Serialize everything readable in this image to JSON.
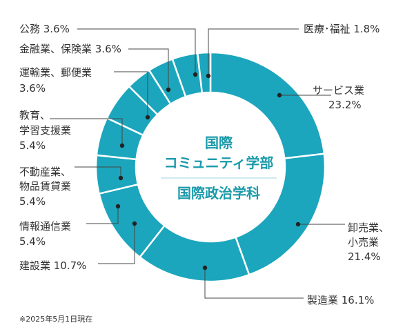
{
  "chart_data": {
    "type": "pie",
    "donut": true,
    "center_label": {
      "line1": "国際",
      "line2": "コミュニティ学部",
      "line3": "国際政治学科"
    },
    "color": "#1ba6bd",
    "slices": [
      {
        "label": "サービス業",
        "value": 23.2,
        "display": "23.2%"
      },
      {
        "label": "卸売業、小売業",
        "value": 21.4,
        "display": "21.4%"
      },
      {
        "label": "製造業",
        "value": 16.1,
        "display": "16.1%"
      },
      {
        "label": "建設業",
        "value": 10.7,
        "display": "10.7%"
      },
      {
        "label": "情報通信業",
        "value": 5.4,
        "display": "5.4%"
      },
      {
        "label": "不動産業、物品賃貸業",
        "value": 5.4,
        "display": "5.4%"
      },
      {
        "label": "教育、学習支援業",
        "value": 5.4,
        "display": "5.4%"
      },
      {
        "label": "運輸業、郵便業",
        "value": 3.6,
        "display": "3.6%"
      },
      {
        "label": "金融業、保険業",
        "value": 3.6,
        "display": "3.6%"
      },
      {
        "label": "公務",
        "value": 3.6,
        "display": "3.6%"
      },
      {
        "label": "医療・福祉",
        "value": 1.8,
        "display": "1.8%"
      }
    ],
    "labels": {
      "service": {
        "line1": "サービス業",
        "line2": "23.2%"
      },
      "retail": {
        "line1": "卸売業、",
        "line2": "小売業",
        "line3": "21.4%"
      },
      "manufacturing": {
        "text": "製造業 16.1%"
      },
      "construction": {
        "text": "建設業 10.7%"
      },
      "it": {
        "line1": "情報通信業",
        "line2": "5.4%"
      },
      "realestate": {
        "line1": "不動産業、",
        "line2": "物品賃貸業",
        "line3": "5.4%"
      },
      "education": {
        "line1": "教育、",
        "line2": "学習支援業",
        "line3": "5.4%"
      },
      "transport": {
        "line1": "運輸業、郵便業",
        "line2": "3.6%"
      },
      "finance": {
        "text": "金融業、保険業 3.6%"
      },
      "public": {
        "text": "公務 3.6%"
      },
      "medical": {
        "text": "医療･福祉 1.8%"
      }
    },
    "note": "※2025年5月1日現在"
  }
}
